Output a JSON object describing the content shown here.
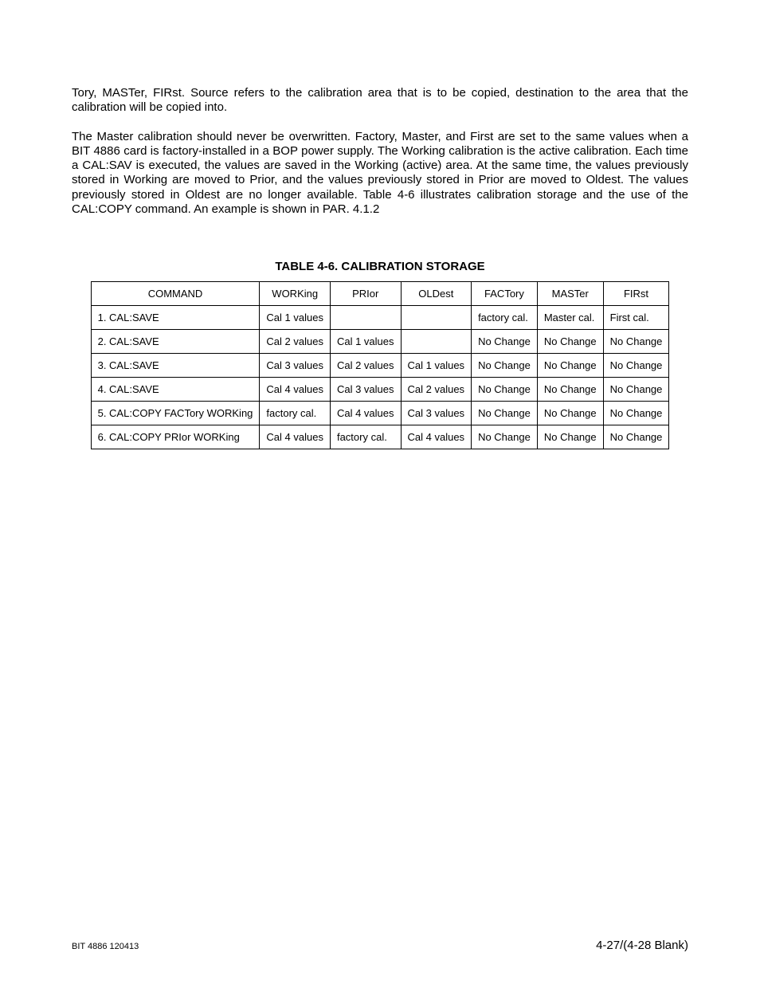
{
  "paragraphs": {
    "p1": "Tory, MASTer, FIRst. Source refers to the calibration area that is to be copied, destination to the area that the calibration will be copied into.",
    "p2": "The Master calibration should never be overwritten. Factory, Master, and First are set to the same values when a BIT 4886 card is factory-installed in a BOP power supply. The Working calibration is the active calibration. Each time a CAL:SAV is executed, the values are saved in the Working (active) area. At the same time, the values previously stored in Working are moved to Prior, and the values previously stored in Prior are moved to Oldest. The values previously stored in Oldest are no longer available. Table 4-6 illustrates calibration storage and the use of the CAL:COPY command. An example is shown in PAR. 4.1.2"
  },
  "table": {
    "title": "TABLE 4-6.  CALIBRATION STORAGE",
    "headers": [
      "COMMAND",
      "WORKing",
      "PRIor",
      "OLDest",
      "FACTory",
      "MASTer",
      "FIRst"
    ],
    "rows": [
      [
        "1. CAL:SAVE",
        "Cal 1 values",
        "",
        "",
        "factory cal.",
        "Master cal.",
        "First cal."
      ],
      [
        "2. CAL:SAVE",
        "Cal 2 values",
        "Cal 1 values",
        "",
        "No Change",
        "No Change",
        "No Change"
      ],
      [
        "3. CAL:SAVE",
        "Cal 3 values",
        "Cal 2 values",
        "Cal 1 values",
        "No Change",
        "No Change",
        "No Change"
      ],
      [
        "4. CAL:SAVE",
        "Cal 4 values",
        "Cal 3 values",
        "Cal 2 values",
        "No Change",
        "No Change",
        "No Change"
      ],
      [
        "5. CAL:COPY FACTory WORKing",
        "factory cal.",
        "Cal 4 values",
        "Cal 3 values",
        "No Change",
        "No Change",
        "No Change"
      ],
      [
        "6. CAL:COPY PRIor WORKing",
        "Cal 4 values",
        "factory cal.",
        "Cal 4 values",
        "No Change",
        "No Change",
        "No Change"
      ]
    ]
  },
  "footer": {
    "left": "BIT 4886 120413",
    "right": "4-27/(4-28 Blank)"
  }
}
